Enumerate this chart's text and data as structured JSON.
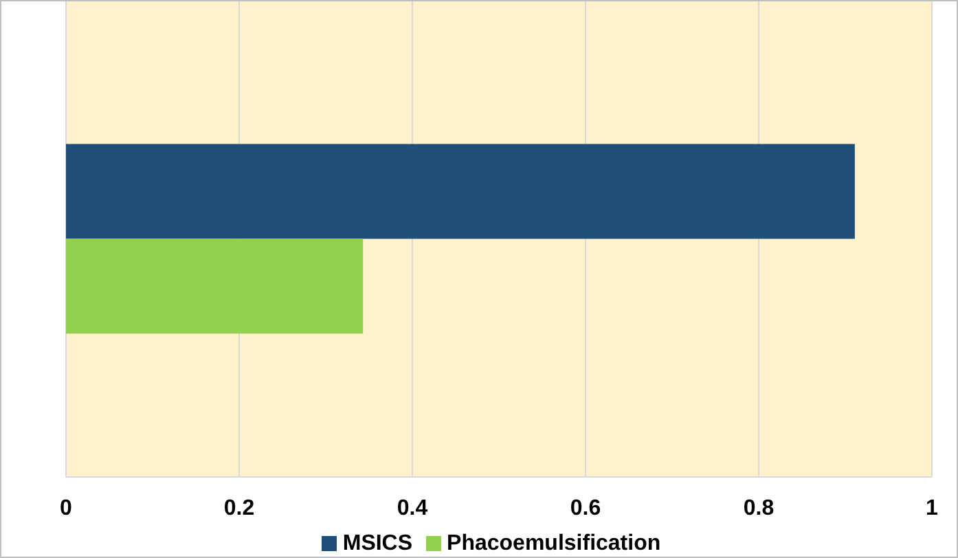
{
  "chart_data": {
    "type": "bar",
    "orientation": "horizontal",
    "categories": [
      null
    ],
    "series": [
      {
        "name": "MSICS",
        "color": "#1f4e79",
        "values": [
          0.911
        ]
      },
      {
        "name": "Phacoemulsification",
        "color": "#92d050",
        "values": [
          0.343
        ]
      }
    ],
    "xlim": [
      0,
      1
    ],
    "xticks": [
      0,
      0.2,
      0.4,
      0.6,
      0.8,
      1
    ],
    "grid": "x",
    "legend": "bottom"
  }
}
